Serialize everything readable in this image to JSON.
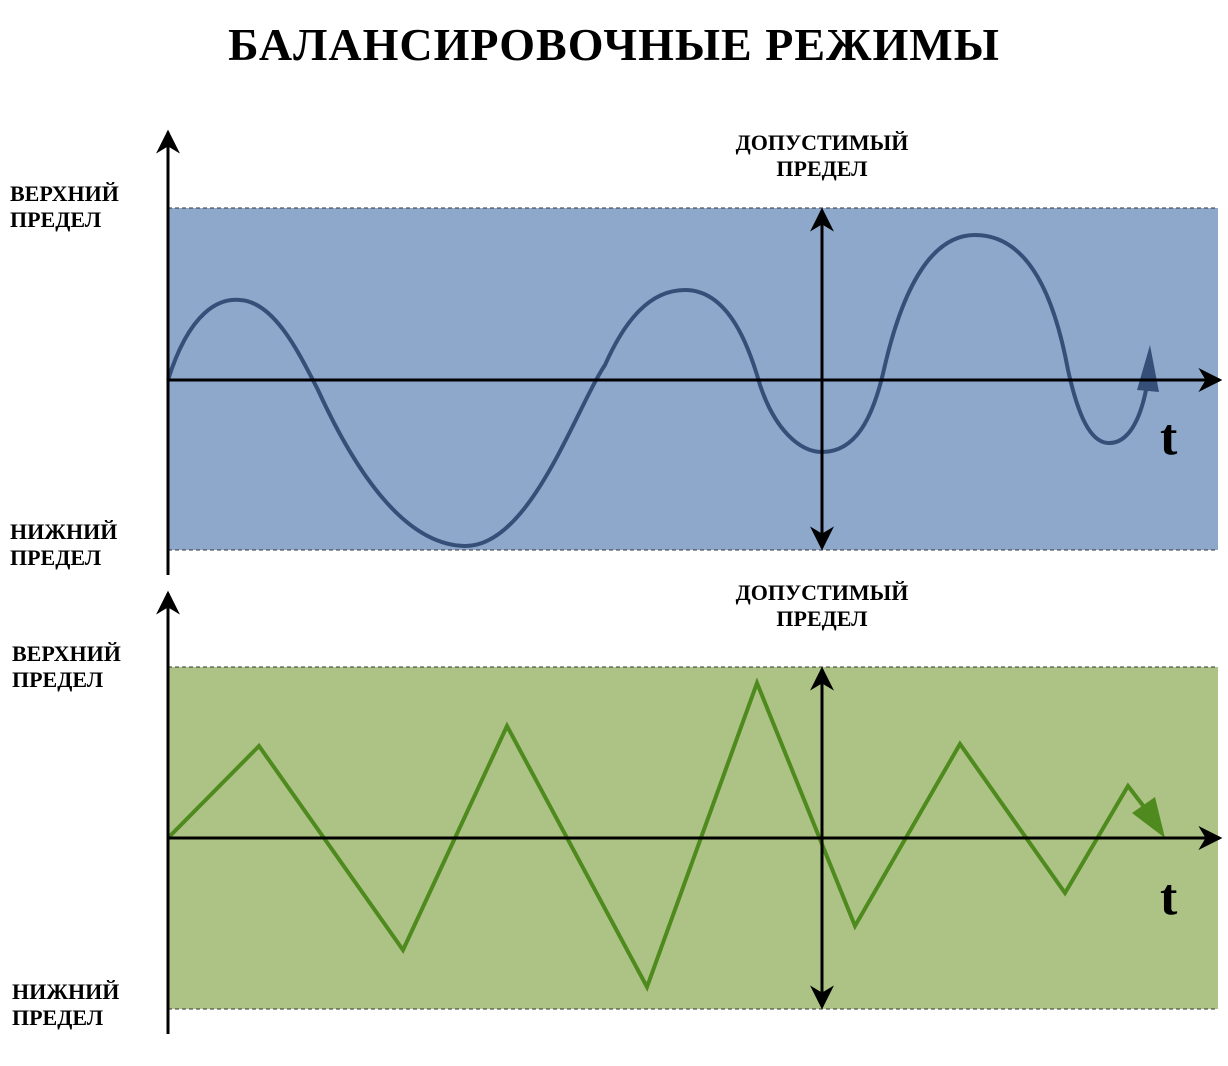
{
  "title": "БАЛАНСИРОВОЧНЫЕ РЕЖИМЫ",
  "colors": {
    "panel1_fill": "#8ea8cb",
    "panel1_curve": "#354f78",
    "panel2_fill": "#adc385",
    "panel2_curve": "#4f8a1f",
    "axis": "#000000"
  },
  "panel1": {
    "upper_label_line1": "ВЕРХНИЙ",
    "upper_label_line2": "ПРЕДЕЛ",
    "lower_label_line1": "НИЖНИЙ",
    "lower_label_line2": "ПРЕДЕЛ",
    "range_label_line1": "ДОПУСТИМЫЙ",
    "range_label_line2": "ПРЕДЕЛ",
    "time_label": "t"
  },
  "panel2": {
    "upper_label_line1": "ВЕРХНИЙ",
    "upper_label_line2": "ПРЕДЕЛ",
    "lower_label_line1": "НИЖНИЙ",
    "lower_label_line2": "ПРЕДЕЛ",
    "range_label_line1": "ДОПУСТИМЫЙ",
    "range_label_line2": "ПРЕДЕЛ",
    "time_label": "t"
  }
}
